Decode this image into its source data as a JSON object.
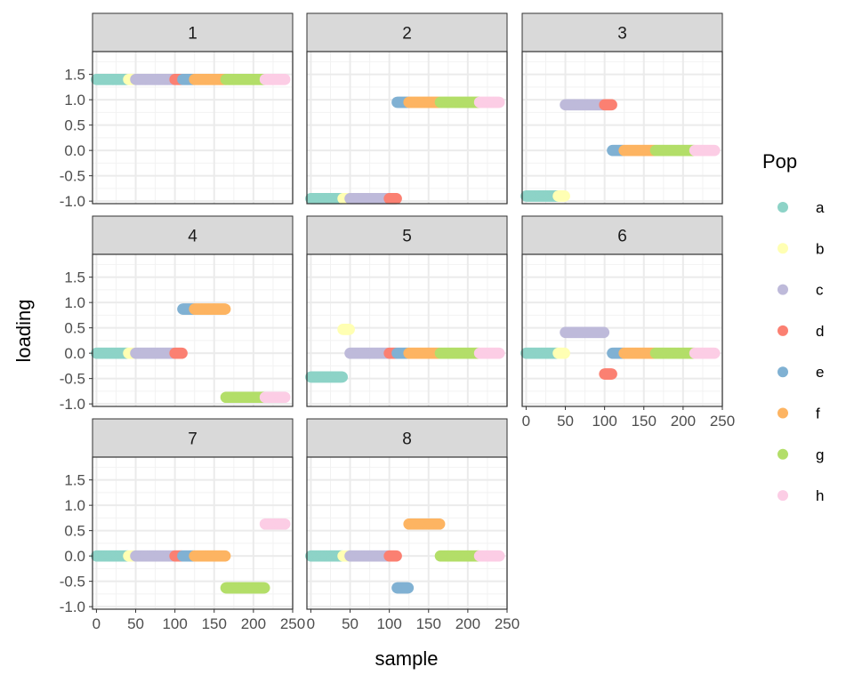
{
  "chart_data": {
    "type": "scatter",
    "facet_by": "factor",
    "xlabel": "sample",
    "ylabel": "loading",
    "xlim": [
      -5,
      250
    ],
    "ylim": [
      -1.05,
      1.95
    ],
    "x_ticks": [
      0,
      50,
      100,
      150,
      200,
      250
    ],
    "x_tick_labels": [
      "0",
      "50",
      "100",
      "150",
      "200",
      "250"
    ],
    "y_ticks": [
      -1.0,
      -0.5,
      0.0,
      0.5,
      1.0,
      1.5
    ],
    "y_tick_labels": [
      "-1.0",
      "-0.5",
      "0.0",
      "0.5",
      "1.0",
      "1.5"
    ],
    "grid": true,
    "legend": {
      "title": "Pop",
      "position": "right",
      "entries": [
        {
          "name": "a",
          "color": "#8dd3c7"
        },
        {
          "name": "b",
          "color": "#ffffb3"
        },
        {
          "name": "c",
          "color": "#bebada"
        },
        {
          "name": "d",
          "color": "#fb8072"
        },
        {
          "name": "e",
          "color": "#80b1d3"
        },
        {
          "name": "f",
          "color": "#fdb462"
        },
        {
          "name": "g",
          "color": "#b3de69"
        },
        {
          "name": "h",
          "color": "#fccde5"
        }
      ]
    },
    "populations": [
      {
        "pop": "a",
        "sample_range": [
          0,
          40
        ]
      },
      {
        "pop": "b",
        "sample_range": [
          41,
          49
        ]
      },
      {
        "pop": "c",
        "sample_range": [
          50,
          99
        ]
      },
      {
        "pop": "d",
        "sample_range": [
          100,
          109
        ]
      },
      {
        "pop": "e",
        "sample_range": [
          110,
          124
        ]
      },
      {
        "pop": "f",
        "sample_range": [
          125,
          164
        ]
      },
      {
        "pop": "g",
        "sample_range": [
          165,
          214
        ]
      },
      {
        "pop": "h",
        "sample_range": [
          215,
          240
        ]
      }
    ],
    "panels": [
      {
        "label": "1",
        "loadings": {
          "a": 1.4,
          "b": 1.4,
          "c": 1.4,
          "d": 1.4,
          "e": 1.4,
          "f": 1.4,
          "g": 1.4,
          "h": 1.4
        }
      },
      {
        "label": "2",
        "loadings": {
          "a": -0.95,
          "b": -0.95,
          "c": -0.95,
          "d": -0.95,
          "e": 0.95,
          "f": 0.95,
          "g": 0.95,
          "h": 0.95
        }
      },
      {
        "label": "3",
        "loadings": {
          "a": -0.9,
          "b": -0.9,
          "c": 0.9,
          "d": 0.9,
          "e": 0.0,
          "f": 0.0,
          "g": 0.0,
          "h": 0.0
        }
      },
      {
        "label": "4",
        "loadings": {
          "a": 0.0,
          "b": 0.0,
          "c": 0.0,
          "d": 0.0,
          "e": 0.87,
          "f": 0.87,
          "g": -0.87,
          "h": -0.87
        }
      },
      {
        "label": "5",
        "loadings": {
          "a": -0.47,
          "b": 0.47,
          "c": 0.0,
          "d": 0.0,
          "e": 0.0,
          "f": 0.0,
          "g": 0.0,
          "h": 0.0
        }
      },
      {
        "label": "6",
        "loadings": {
          "a": 0.0,
          "b": 0.0,
          "c": 0.41,
          "d": -0.41,
          "e": 0.0,
          "f": 0.0,
          "g": 0.0,
          "h": 0.0
        }
      },
      {
        "label": "7",
        "loadings": {
          "a": 0.0,
          "b": 0.0,
          "c": 0.0,
          "d": 0.0,
          "e": 0.0,
          "f": 0.0,
          "g": -0.63,
          "h": 0.63
        }
      },
      {
        "label": "8",
        "loadings": {
          "a": 0.0,
          "b": 0.0,
          "c": 0.0,
          "d": 0.0,
          "e": -0.63,
          "f": 0.63,
          "g": 0.0,
          "h": 0.0
        }
      }
    ]
  }
}
